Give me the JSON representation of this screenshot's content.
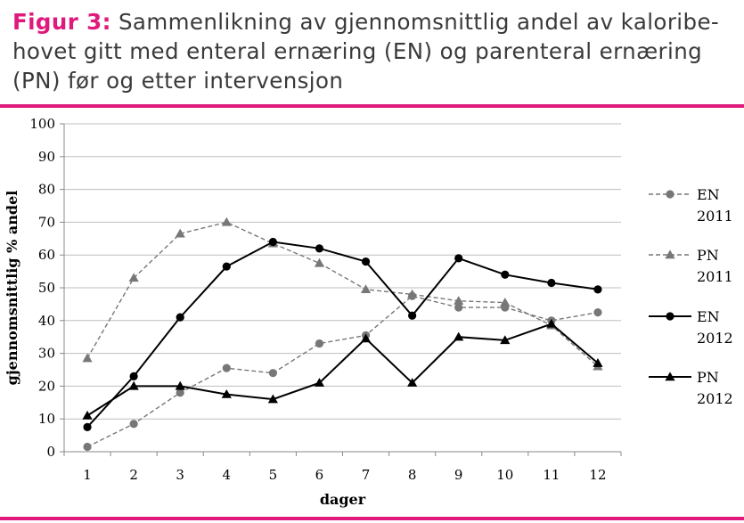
{
  "figure": {
    "label": "Figur 3:",
    "caption": "Sammenlikning av gjennomsnittlig andel av kaloribe-hovet gitt med enteral ernæring (EN) og parenteral ernæring (PN) før og etter intervensjon",
    "accent_color": "#e0197d"
  },
  "chart_data": {
    "type": "line",
    "title": "",
    "xlabel": "dager",
    "ylabel": "gjennomsnittlig % andel",
    "categories": [
      "1",
      "2",
      "3",
      "4",
      "5",
      "6",
      "7",
      "8",
      "9",
      "10",
      "11",
      "12"
    ],
    "ylim": [
      0,
      100
    ],
    "yticks": [
      0,
      10,
      20,
      30,
      40,
      50,
      60,
      70,
      80,
      90,
      100
    ],
    "grid": true,
    "legend_position": "right",
    "series": [
      {
        "name": "EN 2011",
        "legend_lines": [
          "EN",
          "2011"
        ],
        "marker": "circle",
        "dash": true,
        "color": "#777777",
        "values": [
          1.5,
          8.5,
          18,
          25.5,
          24,
          33,
          35.5,
          47.5,
          44,
          44,
          40,
          42.5
        ]
      },
      {
        "name": "PN 2011",
        "legend_lines": [
          "PN",
          "2011"
        ],
        "marker": "triangle",
        "dash": true,
        "color": "#777777",
        "values": [
          28.5,
          53,
          66.5,
          70,
          63.5,
          57.5,
          49.5,
          48,
          46,
          45.5,
          38.5,
          26
        ]
      },
      {
        "name": "EN 2012",
        "legend_lines": [
          "EN",
          "2012"
        ],
        "marker": "circle",
        "dash": false,
        "color": "#000000",
        "values": [
          7.5,
          23,
          41,
          56.5,
          64,
          62,
          58,
          41.5,
          59,
          54,
          51.5,
          49.5
        ]
      },
      {
        "name": "PN 2012",
        "legend_lines": [
          "PN",
          "2012"
        ],
        "marker": "triangle",
        "dash": false,
        "color": "#000000",
        "values": [
          11,
          20,
          20,
          17.5,
          16,
          21,
          34.5,
          21,
          35,
          34,
          39,
          27
        ]
      }
    ]
  }
}
